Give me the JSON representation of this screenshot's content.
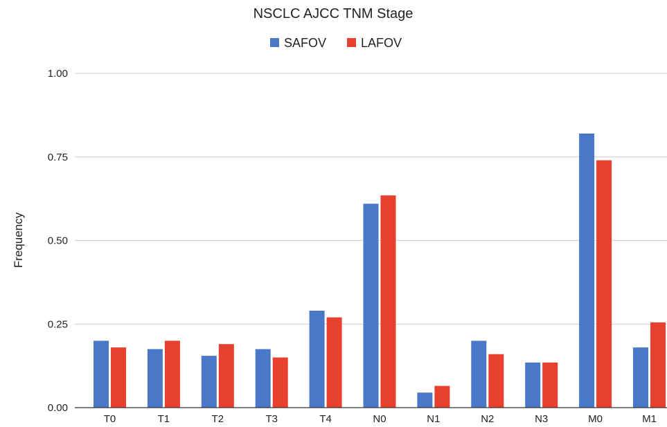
{
  "chart_data": {
    "type": "bar",
    "title": "NSCLC AJCC TNM Stage",
    "xlabel": "",
    "ylabel": "Frequency",
    "categories": [
      "T0",
      "T1",
      "T2",
      "T3",
      "T4",
      "N0",
      "N1",
      "N2",
      "N3",
      "M0",
      "M1"
    ],
    "series": [
      {
        "name": "SAFOV",
        "color": "#4a78c8",
        "values": [
          0.2,
          0.175,
          0.155,
          0.175,
          0.29,
          0.61,
          0.045,
          0.2,
          0.135,
          0.82,
          0.18
        ]
      },
      {
        "name": "LAFOV",
        "color": "#e8402f",
        "values": [
          0.18,
          0.2,
          0.19,
          0.15,
          0.27,
          0.635,
          0.065,
          0.16,
          0.135,
          0.74,
          0.255
        ]
      }
    ],
    "ylim": [
      0,
      1
    ],
    "yticks": [
      "0.00",
      "0.25",
      "0.50",
      "0.75",
      "1.00"
    ],
    "grid": true,
    "legend_position": "top-center"
  }
}
